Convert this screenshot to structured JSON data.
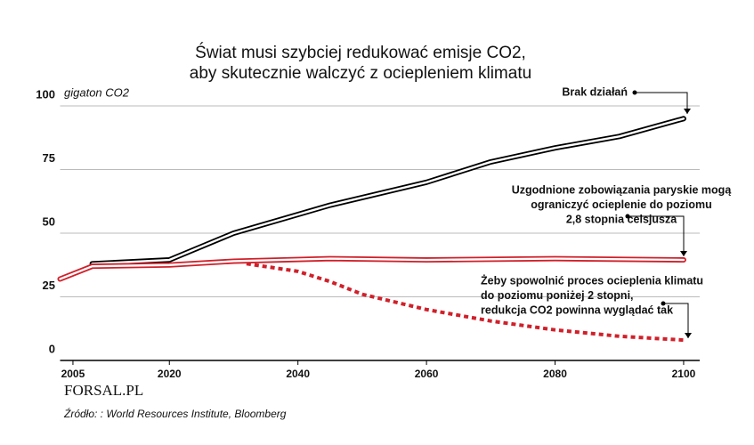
{
  "chart_data": {
    "type": "line",
    "title": [
      "Świat musi szybciej redukować emisje CO2,",
      "aby skutecznie walczyć z ociepleniem klimatu"
    ],
    "y_label": "gigaton CO2",
    "xlim": [
      2003,
      2102.5
    ],
    "xticks": [
      2005,
      2020,
      2040,
      2060,
      2080,
      2100
    ],
    "ylim": [
      0,
      100
    ],
    "yticks": [
      0,
      25,
      50,
      75,
      100
    ],
    "grid": true,
    "series": [
      {
        "style": "double",
        "color": "#000000",
        "x": [
          2008,
          2020,
          2030,
          2045,
          2060,
          2070,
          2080,
          2090,
          2100
        ],
        "values": [
          38,
          39.5,
          50,
          61,
          70,
          78,
          83.5,
          88,
          95
        ]
      },
      {
        "style": "double",
        "color": "#d0202a",
        "x": [
          2003,
          2008,
          2020,
          2030,
          2045,
          2060,
          2080,
          2100
        ],
        "values": [
          32,
          37,
          37.5,
          39,
          40,
          39.5,
          40,
          39.5
        ]
      },
      {
        "style": "dashed",
        "color": "#d0202a",
        "x": [
          2032,
          2040,
          2045,
          2050,
          2060,
          2070,
          2080,
          2090,
          2100
        ],
        "values": [
          38,
          35,
          31,
          26,
          20,
          15.5,
          12,
          9.5,
          8
        ]
      }
    ],
    "annotations": [
      {
        "lines": [
          "Brak działań"
        ]
      },
      {
        "lines": [
          "Uzgodnione zobowiązania paryskie mogą",
          "ograniczyć ocieplenie do poziomu",
          "2,8 stopnia celsjusza"
        ]
      },
      {
        "lines": [
          "Żeby spowolnić proces ocieplenia klimatu",
          "do poziomu poniżej 2 stopni,",
          "redukcja CO2 powinna wyglądać tak"
        ]
      }
    ],
    "logo": "FORSAL.PL",
    "source": "Źródło: : World Resources Institute, Bloomberg"
  }
}
